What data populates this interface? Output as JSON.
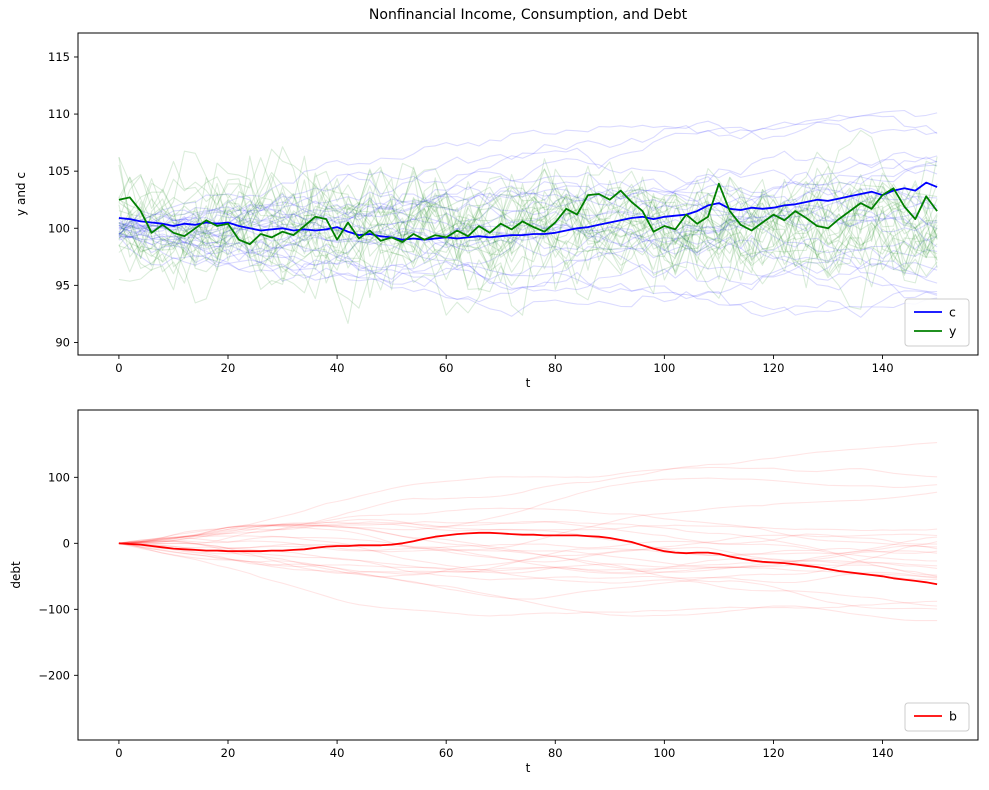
{
  "figure": {
    "title": "Nonfinancial Income, Consumption, and Debt"
  },
  "chart_data": [
    {
      "type": "line",
      "title": "Nonfinancial Income, Consumption, and Debt",
      "xlabel": "t",
      "ylabel": "y and c",
      "xlim": [
        -7.5,
        157.5
      ],
      "ylim": [
        88.9,
        117.1
      ],
      "xticks": [
        0,
        20,
        40,
        60,
        80,
        100,
        120,
        140
      ],
      "yticks": [
        90,
        95,
        100,
        105,
        110,
        115
      ],
      "grid": false,
      "legend_position": "lower right",
      "x_start": 0,
      "x_step": 2,
      "series": [
        {
          "name": "c",
          "color": "#0000ff",
          "width": 1.8,
          "values": [
            100.9,
            100.8,
            100.6,
            100.5,
            100.4,
            100.2,
            100.4,
            100.3,
            100.5,
            100.4,
            100.5,
            100.2,
            100.0,
            99.8,
            99.9,
            100.0,
            99.8,
            99.9,
            99.8,
            99.9,
            100.1,
            99.7,
            99.4,
            99.5,
            99.3,
            99.2,
            99.0,
            99.1,
            99.0,
            99.1,
            99.2,
            99.1,
            99.2,
            99.3,
            99.2,
            99.3,
            99.4,
            99.4,
            99.5,
            99.5,
            99.6,
            99.8,
            100.0,
            100.1,
            100.3,
            100.5,
            100.7,
            100.9,
            101.0,
            100.8,
            101.0,
            101.1,
            101.2,
            101.5,
            102.0,
            102.2,
            101.7,
            101.6,
            101.8,
            101.7,
            101.8,
            102.0,
            102.1,
            102.3,
            102.5,
            102.4,
            102.6,
            102.8,
            103.0,
            103.2,
            102.9,
            103.3,
            103.5,
            103.3,
            104.0,
            103.6
          ]
        },
        {
          "name": "y",
          "color": "#008000",
          "width": 1.8,
          "values": [
            102.5,
            102.7,
            101.5,
            99.6,
            100.3,
            99.6,
            99.3,
            100.0,
            100.7,
            100.2,
            100.4,
            99.0,
            98.6,
            99.5,
            99.2,
            99.7,
            99.4,
            100.2,
            101.0,
            100.8,
            99.0,
            100.5,
            99.1,
            99.8,
            98.9,
            99.2,
            98.8,
            99.5,
            99.0,
            99.4,
            99.2,
            99.8,
            99.3,
            100.2,
            99.6,
            100.4,
            99.9,
            100.6,
            100.1,
            99.7,
            100.5,
            101.7,
            101.2,
            102.9,
            103.0,
            102.5,
            103.3,
            102.3,
            101.5,
            99.7,
            100.2,
            99.9,
            101.2,
            100.4,
            101.0,
            103.9,
            101.5,
            100.3,
            99.8,
            100.5,
            101.2,
            100.7,
            101.5,
            100.9,
            100.2,
            100.0,
            100.8,
            101.5,
            102.2,
            101.7,
            102.9,
            103.5,
            101.9,
            100.8,
            102.8,
            101.5
          ]
        }
      ],
      "ensembles": [
        {
          "name": "consumption-simulated-paths",
          "kind": "random-walk",
          "n_paths": 25,
          "color": "#0000ff",
          "alpha": 0.14,
          "seed": 11,
          "params": {
            "start_mean": 100,
            "start_sd": 0.6,
            "bias_sd": 0.065,
            "step_sd": 0.48,
            "limit": 14.5
          }
        },
        {
          "name": "income-simulated-paths",
          "kind": "stationary",
          "n_paths": 25,
          "color": "#008000",
          "alpha": 0.14,
          "seed": 23,
          "params": {
            "mean": 100,
            "offset_sd": 0.8,
            "ar": 0.55,
            "innovation_sd": 1.9
          }
        }
      ]
    },
    {
      "type": "line",
      "title": "",
      "xlabel": "t",
      "ylabel": "debt",
      "xlim": [
        -7.5,
        157.5
      ],
      "ylim": [
        -298,
        202
      ],
      "xticks": [
        0,
        20,
        40,
        60,
        80,
        100,
        120,
        140
      ],
      "yticks": [
        -200,
        -100,
        0,
        100
      ],
      "grid": false,
      "legend_position": "lower right",
      "x_start": 0,
      "x_step": 2,
      "series": [
        {
          "name": "b",
          "color": "#ff0000",
          "width": 1.8,
          "values": [
            0,
            -1,
            -2,
            -4,
            -6,
            -8,
            -9,
            -10,
            -11,
            -11,
            -12,
            -12,
            -12,
            -12,
            -11,
            -11,
            -10,
            -9,
            -7,
            -5,
            -4,
            -4,
            -3,
            -3,
            -3,
            -2,
            0,
            3,
            7,
            10,
            12,
            14,
            15,
            16,
            16,
            15,
            14,
            13,
            13,
            12,
            12,
            12,
            12,
            11,
            10,
            8,
            5,
            2,
            -3,
            -8,
            -12,
            -14,
            -15,
            -14,
            -14,
            -16,
            -20,
            -23,
            -26,
            -28,
            -29,
            -30,
            -32,
            -34,
            -36,
            -39,
            -42,
            -44,
            -46,
            -48,
            -50,
            -53,
            -55,
            -57,
            -59,
            -62
          ]
        }
      ],
      "ensembles": [
        {
          "name": "debt-simulated-paths",
          "kind": "integrated",
          "n_paths": 25,
          "color": "#ff0000",
          "alpha": 0.1,
          "seed": 37,
          "params": {
            "ar": 0.9,
            "innovation_sd": 0.9,
            "bias_sd": 0.3,
            "limit": 280
          }
        }
      ]
    }
  ]
}
